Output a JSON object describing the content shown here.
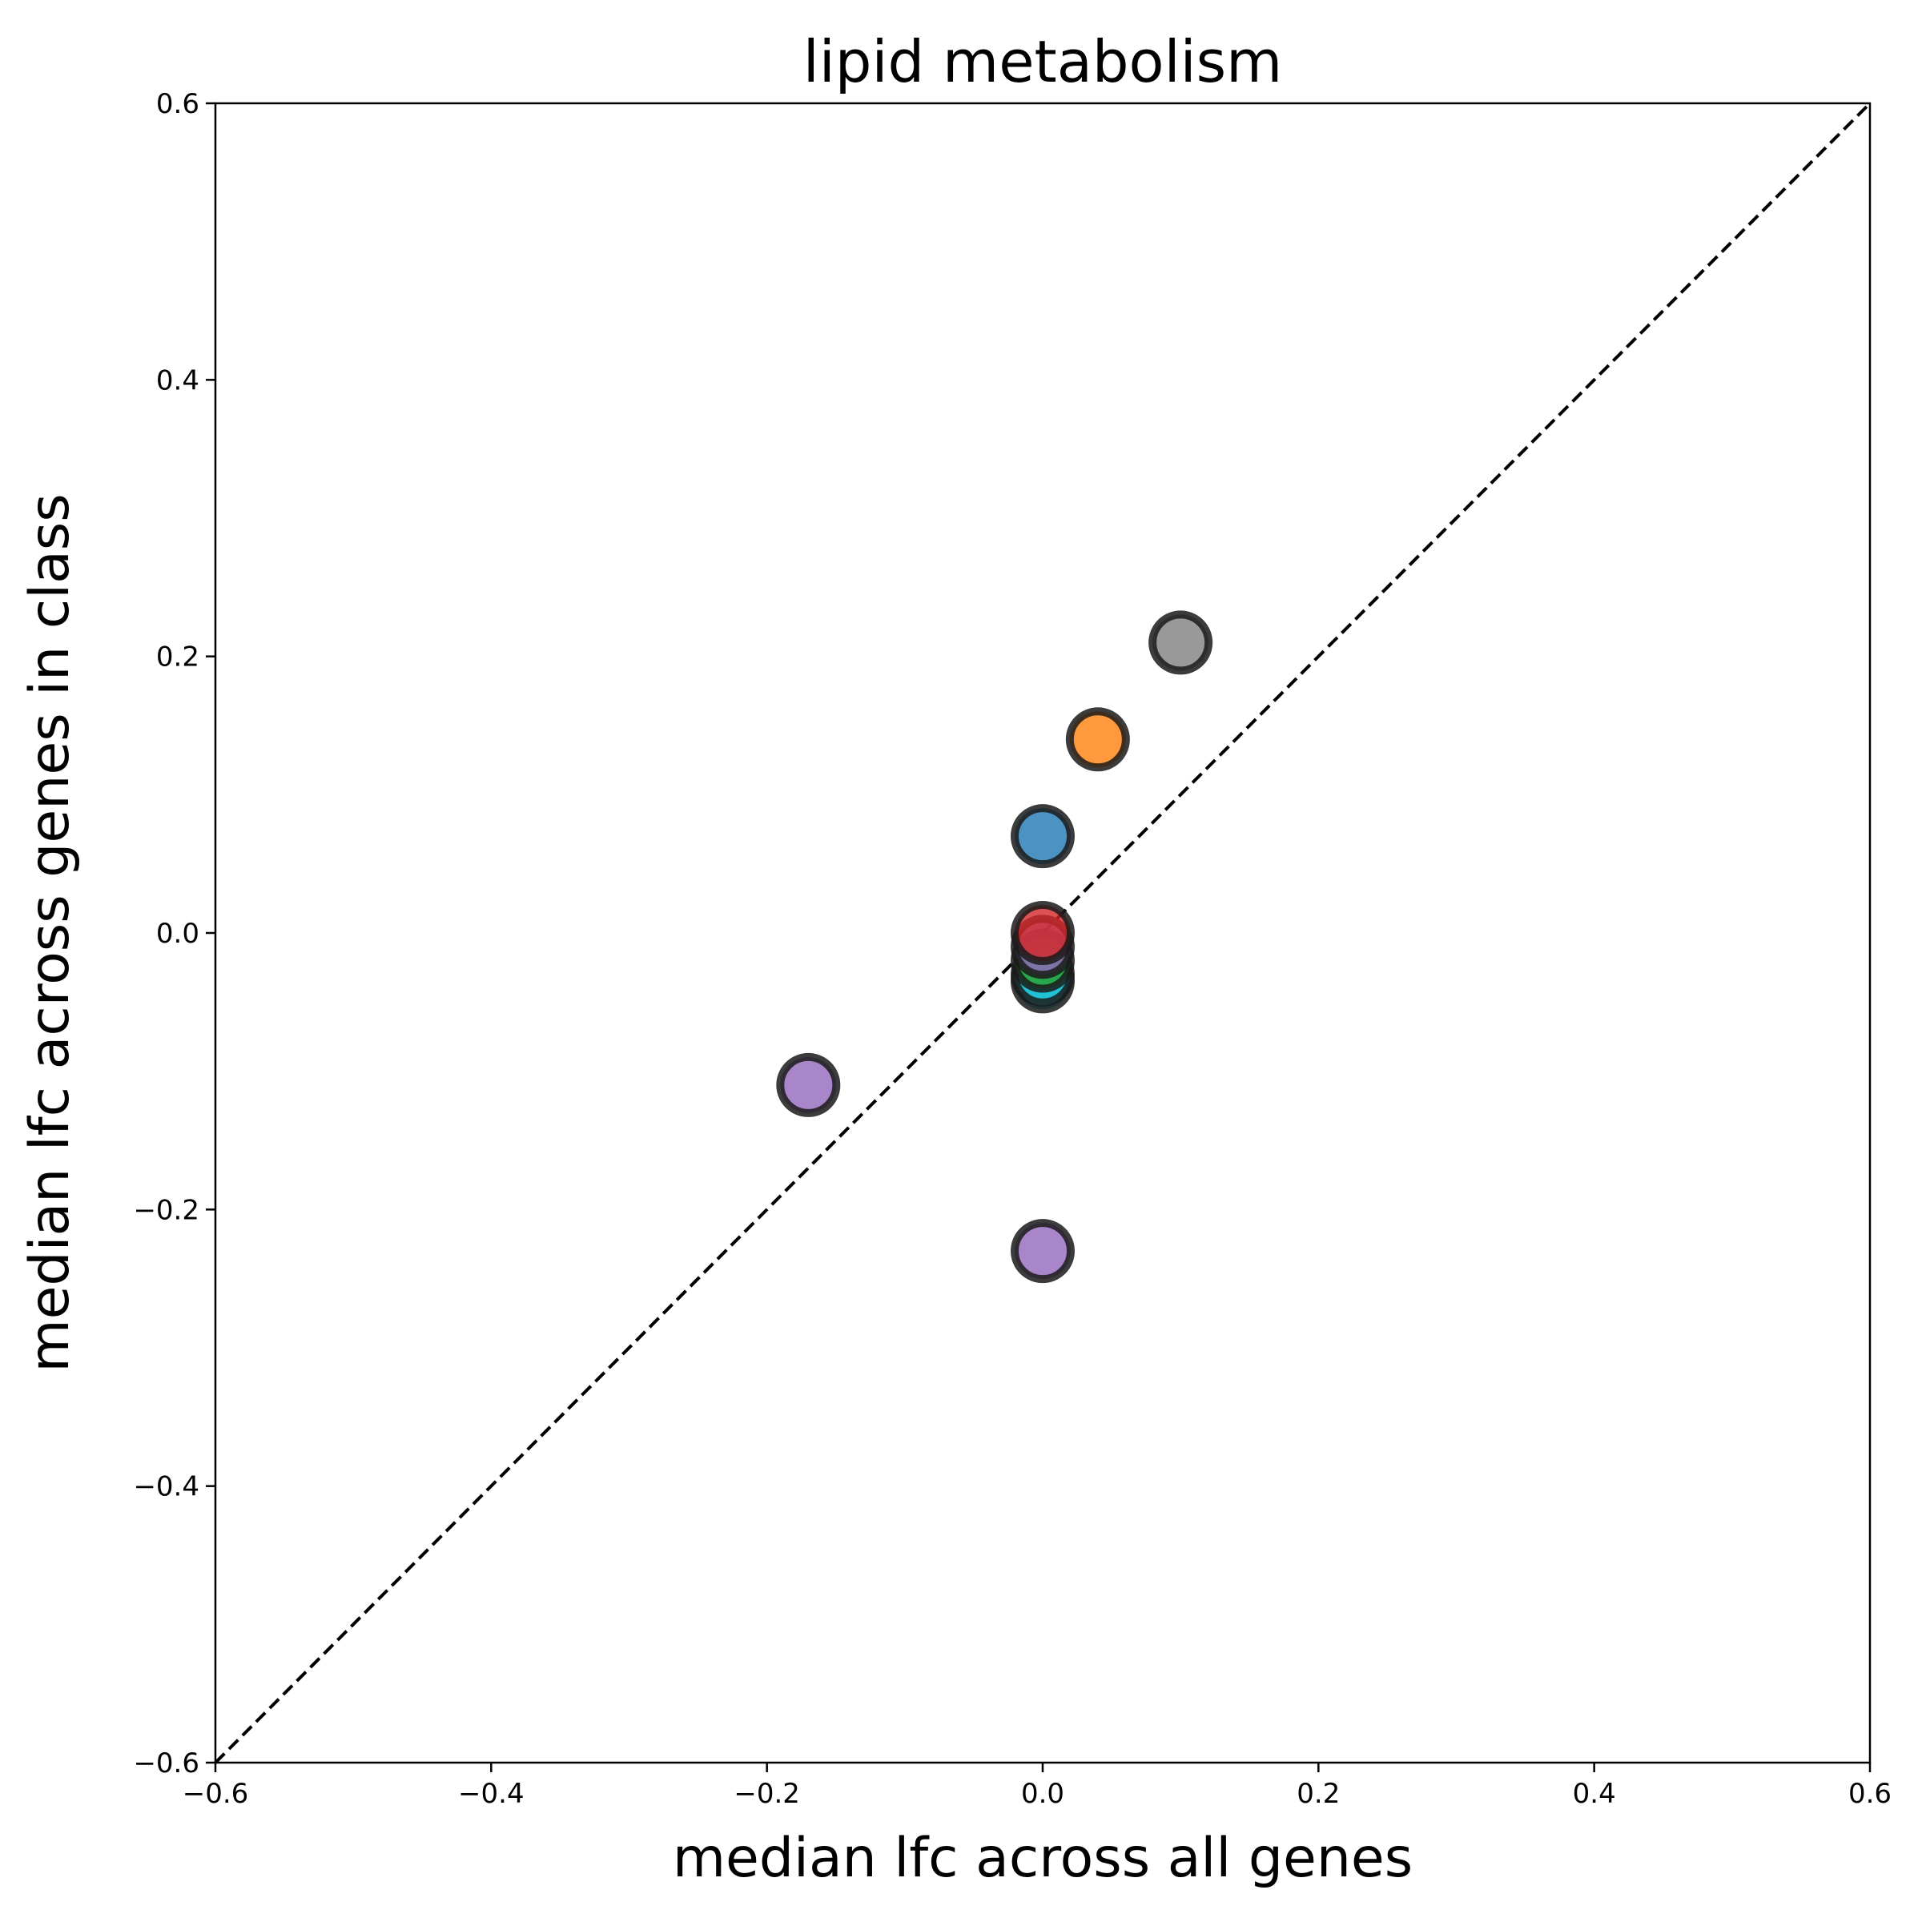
{
  "chart_data": {
    "type": "scatter",
    "title": "lipid metabolism",
    "xlabel": "median lfc across all genes",
    "ylabel": "median lfc across genes in class",
    "xlim": [
      -0.6,
      0.6
    ],
    "ylim": [
      -0.6,
      0.6
    ],
    "xticks": [
      -0.6,
      -0.4,
      -0.2,
      0.0,
      0.2,
      0.4,
      0.6
    ],
    "yticks": [
      -0.6,
      -0.4,
      -0.2,
      0.0,
      0.2,
      0.4,
      0.6
    ],
    "xtick_labels": [
      "−0.6",
      "−0.4",
      "−0.2",
      "0.0",
      "0.2",
      "0.4",
      "0.6"
    ],
    "ytick_labels": [
      "−0.6",
      "−0.4",
      "−0.2",
      "0.0",
      "0.2",
      "0.4",
      "0.6"
    ],
    "grid": false,
    "reference_line": {
      "type": "identity",
      "style": "dashed",
      "color": "#000000"
    },
    "points": [
      {
        "x": 0.1,
        "y": 0.21,
        "color": "#7f7f7f"
      },
      {
        "x": 0.04,
        "y": 0.14,
        "color": "#ff7f0e"
      },
      {
        "x": 0.0,
        "y": 0.07,
        "color": "#1f77b4"
      },
      {
        "x": 0.0,
        "y": -0.035,
        "color": "#17becf"
      },
      {
        "x": 0.0,
        "y": -0.03,
        "color": "#17becf"
      },
      {
        "x": 0.0,
        "y": -0.02,
        "color": "#2ca02c"
      },
      {
        "x": 0.0,
        "y": -0.01,
        "color": "#9467bd"
      },
      {
        "x": 0.0,
        "y": 0.0,
        "color": "#d62728"
      },
      {
        "x": -0.17,
        "y": -0.11,
        "color": "#9467bd"
      },
      {
        "x": 0.0,
        "y": -0.23,
        "color": "#9467bd"
      }
    ],
    "marker_edge_color": "#1a1a1a",
    "marker_alpha": 0.8
  }
}
